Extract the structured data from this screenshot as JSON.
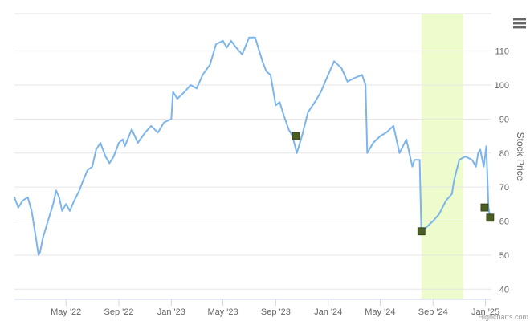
{
  "chart_data": {
    "type": "line",
    "title": "",
    "xlabel": "",
    "ylabel": "Stock Price",
    "ylim": [
      37,
      121
    ],
    "y_ticks": [
      40,
      50,
      60,
      70,
      80,
      90,
      100,
      110
    ],
    "x_range": [
      "2022-01-01",
      "2025-01-15"
    ],
    "x_ticks": [
      {
        "date": "2022-05-01",
        "label": "May '22"
      },
      {
        "date": "2022-09-01",
        "label": "Sep '22"
      },
      {
        "date": "2023-01-01",
        "label": "Jan '23"
      },
      {
        "date": "2023-05-01",
        "label": "May '23"
      },
      {
        "date": "2023-09-01",
        "label": "Sep '23"
      },
      {
        "date": "2024-01-01",
        "label": "Jan '24"
      },
      {
        "date": "2024-05-01",
        "label": "May '24"
      },
      {
        "date": "2024-09-01",
        "label": "Sep '24"
      },
      {
        "date": "2025-01-01",
        "label": "Jan '25"
      }
    ],
    "grid": true,
    "legend": "none",
    "highlight_band": {
      "from": "2024-08-05",
      "to": "2024-11-10",
      "color": "#eefbcc"
    },
    "line_color": "#7cb5ec",
    "marker_color": "#4a5e23",
    "series": [
      {
        "x": [
          "2022-01-01",
          "2022-01-10",
          "2022-01-20",
          "2022-02-01",
          "2022-02-10",
          "2022-02-20",
          "2022-02-26",
          "2022-03-02",
          "2022-03-08",
          "2022-03-20",
          "2022-04-01",
          "2022-04-08",
          "2022-04-15",
          "2022-04-22",
          "2022-05-01",
          "2022-05-10",
          "2022-05-20",
          "2022-06-01",
          "2022-06-10",
          "2022-06-20",
          "2022-07-01",
          "2022-07-10",
          "2022-07-20",
          "2022-08-01",
          "2022-08-10",
          "2022-08-20",
          "2022-09-01",
          "2022-09-10",
          "2022-09-15",
          "2022-10-01",
          "2022-10-15",
          "2022-11-01",
          "2022-11-15",
          "2022-12-01",
          "2022-12-15",
          "2023-01-01",
          "2023-01-05",
          "2023-01-15",
          "2023-02-01",
          "2023-02-15",
          "2023-03-01",
          "2023-03-15",
          "2023-04-01",
          "2023-04-15",
          "2023-05-01",
          "2023-05-10",
          "2023-05-20",
          "2023-06-01",
          "2023-06-15",
          "2023-07-01",
          "2023-07-15",
          "2023-08-01",
          "2023-08-10",
          "2023-08-20",
          "2023-09-01",
          "2023-09-10",
          "2023-09-20",
          "2023-10-01",
          "2023-10-10",
          "2023-10-20",
          "2023-11-01",
          "2023-11-15",
          "2023-12-01",
          "2023-12-15",
          "2024-01-01",
          "2024-01-15",
          "2024-02-01",
          "2024-02-15",
          "2024-03-01",
          "2024-03-20",
          "2024-03-28",
          "2024-04-01",
          "2024-04-15",
          "2024-05-01",
          "2024-05-15",
          "2024-06-01",
          "2024-06-15",
          "2024-07-01",
          "2024-07-15",
          "2024-07-20",
          "2024-08-01",
          "2024-08-05",
          "2024-08-15",
          "2024-09-01",
          "2024-09-15",
          "2024-10-01",
          "2024-10-15",
          "2024-10-20",
          "2024-11-01",
          "2024-11-15",
          "2024-12-01",
          "2024-12-10",
          "2024-12-15",
          "2024-12-20",
          "2024-12-28",
          "2025-01-03",
          "2025-01-08",
          "2025-01-12"
        ],
        "y": [
          67,
          64,
          66,
          67,
          63,
          55,
          50,
          51,
          55,
          60,
          65,
          69,
          67,
          63,
          65,
          63,
          66,
          69,
          72,
          75,
          76,
          81,
          83,
          79,
          77,
          79,
          83,
          84,
          82,
          87,
          83,
          86,
          88,
          86,
          89,
          90,
          98,
          96,
          98,
          100,
          99,
          103,
          106,
          112,
          113,
          111,
          113,
          111,
          109,
          114,
          114,
          107,
          104,
          103,
          94,
          95,
          91,
          87,
          85,
          80,
          85,
          92,
          95,
          98,
          103,
          107,
          105,
          101,
          102,
          103,
          100,
          80,
          83,
          85,
          86,
          88,
          80,
          84,
          76,
          78,
          78,
          56,
          58,
          60,
          62,
          66,
          68,
          72,
          78,
          79,
          78,
          76,
          80,
          81,
          76,
          82,
          64,
          61
        ]
      }
    ],
    "markers": [
      {
        "x": "2023-10-18",
        "y": 85
      },
      {
        "x": "2024-08-05",
        "y": 57
      },
      {
        "x": "2024-12-30",
        "y": 64
      },
      {
        "x": "2025-01-12",
        "y": 61
      }
    ],
    "credits": "Highcharts.com"
  },
  "icons": {
    "menu": "hamburger-menu-icon"
  }
}
